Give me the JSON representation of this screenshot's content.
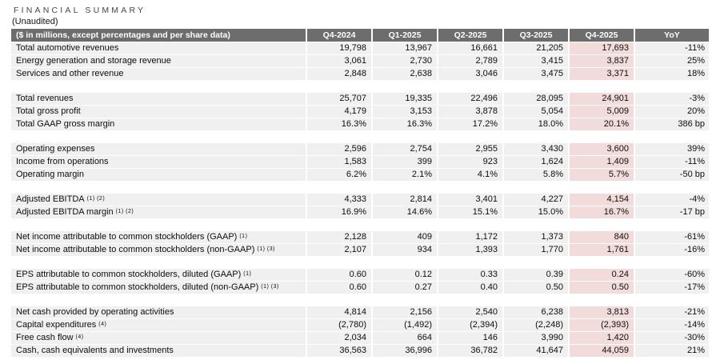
{
  "title": "FINANCIAL SUMMARY",
  "subtitle": "(Unaudited)",
  "colors": {
    "header_bg": "#6d6d6d",
    "header_text": "#ffffff",
    "row_bg": "#f0f0f0",
    "highlight_bg": "#f2dcdb"
  },
  "table": {
    "header": {
      "label": "($ in millions, except percentages and per share data)",
      "columns": [
        "Q4-2024",
        "Q1-2025",
        "Q2-2025",
        "Q3-2025",
        "Q4-2025",
        "YoY"
      ]
    },
    "highlight_column": "Q4-2025",
    "sections": [
      {
        "rows": [
          {
            "label": "Total automotive revenues",
            "sup": "",
            "values": [
              "19,798",
              "13,967",
              "16,661",
              "21,205",
              "17,693",
              "-11%"
            ]
          },
          {
            "label": "Energy generation and storage revenue",
            "sup": "",
            "values": [
              "3,061",
              "2,730",
              "2,789",
              "3,415",
              "3,837",
              "25%"
            ]
          },
          {
            "label": "Services and other revenue",
            "sup": "",
            "values": [
              "2,848",
              "2,638",
              "3,046",
              "3,475",
              "3,371",
              "18%"
            ]
          }
        ]
      },
      {
        "rows": [
          {
            "label": "Total revenues",
            "sup": "",
            "values": [
              "25,707",
              "19,335",
              "22,496",
              "28,095",
              "24,901",
              "-3%"
            ]
          },
          {
            "label": "Total gross profit",
            "sup": "",
            "values": [
              "4,179",
              "3,153",
              "3,878",
              "5,054",
              "5,009",
              "20%"
            ]
          },
          {
            "label": "Total GAAP gross margin",
            "sup": "",
            "values": [
              "16.3%",
              "16.3%",
              "17.2%",
              "18.0%",
              "20.1%",
              "386 bp"
            ]
          }
        ]
      },
      {
        "rows": [
          {
            "label": "Operating expenses",
            "sup": "",
            "values": [
              "2,596",
              "2,754",
              "2,955",
              "3,430",
              "3,600",
              "39%"
            ]
          },
          {
            "label": "Income from operations",
            "sup": "",
            "values": [
              "1,583",
              "399",
              "923",
              "1,624",
              "1,409",
              "-11%"
            ]
          },
          {
            "label": "Operating margin",
            "sup": "",
            "values": [
              "6.2%",
              "2.1%",
              "4.1%",
              "5.8%",
              "5.7%",
              "-50 bp"
            ]
          }
        ]
      },
      {
        "rows": [
          {
            "label": "Adjusted EBITDA",
            "sup": "(1) (2)",
            "values": [
              "4,333",
              "2,814",
              "3,401",
              "4,227",
              "4,154",
              "-4%"
            ]
          },
          {
            "label": "Adjusted EBITDA margin",
            "sup": "(1) (2)",
            "values": [
              "16.9%",
              "14.6%",
              "15.1%",
              "15.0%",
              "16.7%",
              "-17 bp"
            ]
          }
        ]
      },
      {
        "rows": [
          {
            "label": "Net income attributable to common stockholders (GAAP)",
            "sup": "(1)",
            "values": [
              "2,128",
              "409",
              "1,172",
              "1,373",
              "840",
              "-61%"
            ]
          },
          {
            "label": "Net income attributable to common stockholders (non-GAAP)",
            "sup": "(1) (3)",
            "values": [
              "2,107",
              "934",
              "1,393",
              "1,770",
              "1,761",
              "-16%"
            ]
          }
        ]
      },
      {
        "rows": [
          {
            "label": "EPS attributable to common stockholders, diluted (GAAP)",
            "sup": "(1)",
            "values": [
              "0.60",
              "0.12",
              "0.33",
              "0.39",
              "0.24",
              "-60%"
            ]
          },
          {
            "label": "EPS attributable to common stockholders, diluted (non-GAAP)",
            "sup": "(1) (3)",
            "values": [
              "0.60",
              "0.27",
              "0.40",
              "0.50",
              "0.50",
              "-17%"
            ]
          }
        ]
      },
      {
        "rows": [
          {
            "label": "Net cash provided by operating activities",
            "sup": "",
            "values": [
              "4,814",
              "2,156",
              "2,540",
              "6,238",
              "3,813",
              "-21%"
            ]
          },
          {
            "label": "Capital expenditures",
            "sup": "(4)",
            "values": [
              "(2,780)",
              "(1,492)",
              "(2,394)",
              "(2,248)",
              "(2,393)",
              "-14%"
            ]
          },
          {
            "label": "Free cash flow",
            "sup": "(4)",
            "values": [
              "2,034",
              "664",
              "146",
              "3,990",
              "1,420",
              "-30%"
            ]
          },
          {
            "label": "Cash, cash equivalents and investments",
            "sup": "",
            "values": [
              "36,563",
              "36,996",
              "36,782",
              "41,647",
              "44,059",
              "21%"
            ]
          }
        ]
      }
    ]
  }
}
